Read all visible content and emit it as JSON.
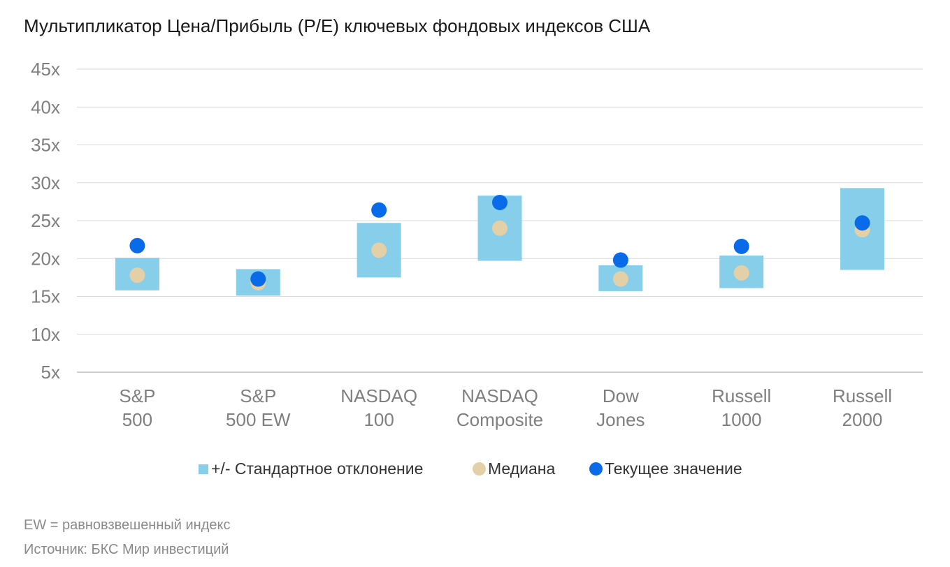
{
  "title": "Мультипликатор Цена/Прибыль (P/E) ключевых фондовых индексов США",
  "colors": {
    "range": "#87CEEB",
    "median": "#E3D0A6",
    "current": "#0A6BE8",
    "grid": "#d9d9d9",
    "axis_text": "#7f7f7f"
  },
  "chart_data": {
    "type": "range-dot",
    "y_ticks": [
      "5x",
      "10x",
      "15x",
      "20x",
      "25x",
      "30x",
      "35x",
      "40x",
      "45x"
    ],
    "ylim": [
      5,
      45
    ],
    "grid": true,
    "legend_position": "bottom",
    "categories": [
      [
        "S&P",
        "500"
      ],
      [
        "S&P",
        "500 EW"
      ],
      [
        "NASDAQ",
        "100"
      ],
      [
        "NASDAQ",
        "Composite"
      ],
      [
        "Dow",
        "Jones"
      ],
      [
        "Russell",
        "1000"
      ],
      [
        "Russell",
        "2000"
      ]
    ],
    "series": [
      {
        "name": "+/- Стандартное отклонение",
        "kind": "range",
        "low": [
          15.8,
          15.1,
          17.5,
          19.7,
          15.7,
          16.1,
          18.5
        ],
        "high": [
          20.1,
          18.6,
          24.7,
          28.3,
          19.1,
          20.4,
          29.3
        ]
      },
      {
        "name": "Медиана",
        "kind": "dot",
        "values": [
          17.8,
          16.8,
          21.1,
          24.0,
          17.3,
          18.1,
          23.8
        ]
      },
      {
        "name": "Текущее значение",
        "kind": "dot",
        "values": [
          21.7,
          17.3,
          26.4,
          27.4,
          19.8,
          21.6,
          24.7
        ]
      }
    ]
  },
  "legend": {
    "range_label": "+/- Стандартное отклонение",
    "median_label": "Медиана",
    "current_label": "Текущее значение"
  },
  "footnotes": {
    "ew_note": "EW = равновзвешенный индекс",
    "source": "Источник: БКС Мир инвестиций"
  }
}
